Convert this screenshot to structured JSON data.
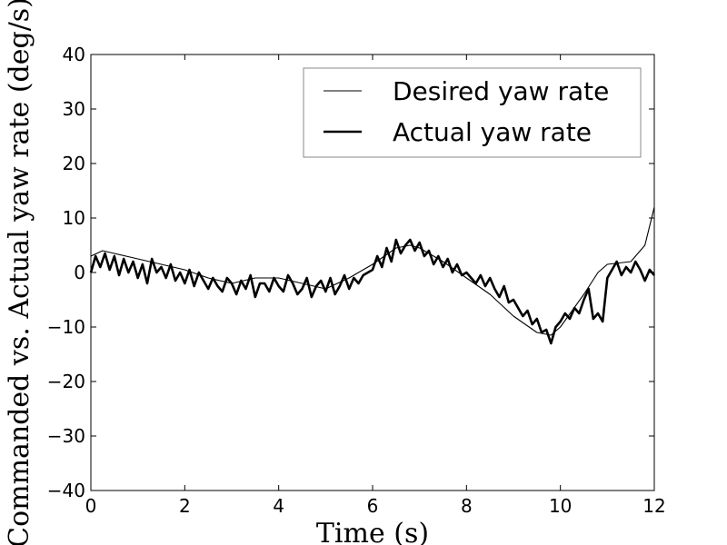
{
  "chart_data": {
    "type": "line",
    "title": "",
    "xlabel": "Time (s)",
    "ylabel": "Commanded vs. Actual yaw rate (deg/s)",
    "xlim": [
      0,
      12
    ],
    "ylim": [
      -40,
      40
    ],
    "xticks": [
      0,
      2,
      4,
      6,
      8,
      10,
      12
    ],
    "yticks": [
      -40,
      -30,
      -20,
      -10,
      0,
      10,
      20,
      30,
      40
    ],
    "xtick_labels": [
      "0",
      "2",
      "4",
      "6",
      "8",
      "10",
      "12"
    ],
    "ytick_labels": [
      "−40",
      "−30",
      "−20",
      "−10",
      "0",
      "10",
      "20",
      "30",
      "40"
    ],
    "grid": false,
    "legend_position": "top-right",
    "line_color": "#000000",
    "series": [
      {
        "name": "Desired yaw rate",
        "style": "thin",
        "x": [
          0,
          0.25,
          0.5,
          1.0,
          1.5,
          2.0,
          2.5,
          3.0,
          3.5,
          4.0,
          4.5,
          5.0,
          5.5,
          6.0,
          6.5,
          6.8,
          7.0,
          7.5,
          8.0,
          8.5,
          9.0,
          9.5,
          9.8,
          10.0,
          10.5,
          10.8,
          11.0,
          11.5,
          11.8,
          12.0
        ],
        "y": [
          3.0,
          4.0,
          3.5,
          2.5,
          1.5,
          0.5,
          -1.0,
          -2.0,
          -1.0,
          -1.0,
          -2.0,
          -3.0,
          -1.0,
          1.5,
          4.5,
          5.0,
          4.5,
          2.0,
          -1.0,
          -4.0,
          -8.0,
          -11.0,
          -11.5,
          -10.0,
          -4.0,
          0.0,
          1.5,
          2.0,
          5.0,
          12.0
        ]
      },
      {
        "name": "Actual yaw rate",
        "style": "thick",
        "x": [
          0,
          0.1,
          0.2,
          0.3,
          0.4,
          0.5,
          0.6,
          0.7,
          0.8,
          0.9,
          1.0,
          1.1,
          1.2,
          1.3,
          1.4,
          1.5,
          1.6,
          1.7,
          1.8,
          1.9,
          2.0,
          2.1,
          2.2,
          2.3,
          2.4,
          2.5,
          2.6,
          2.7,
          2.8,
          2.9,
          3.0,
          3.1,
          3.2,
          3.3,
          3.4,
          3.5,
          3.6,
          3.7,
          3.8,
          3.9,
          4.0,
          4.1,
          4.2,
          4.3,
          4.4,
          4.5,
          4.6,
          4.7,
          4.8,
          4.9,
          5.0,
          5.1,
          5.2,
          5.3,
          5.4,
          5.5,
          5.6,
          5.7,
          5.8,
          5.9,
          6.0,
          6.1,
          6.2,
          6.3,
          6.4,
          6.5,
          6.6,
          6.7,
          6.8,
          6.9,
          7.0,
          7.1,
          7.2,
          7.3,
          7.4,
          7.5,
          7.6,
          7.7,
          7.8,
          7.9,
          8.0,
          8.1,
          8.2,
          8.3,
          8.4,
          8.5,
          8.6,
          8.7,
          8.8,
          8.9,
          9.0,
          9.1,
          9.2,
          9.3,
          9.4,
          9.5,
          9.6,
          9.7,
          9.8,
          9.9,
          10.0,
          10.1,
          10.2,
          10.3,
          10.4,
          10.5,
          10.6,
          10.7,
          10.8,
          10.9,
          11.0,
          11.1,
          11.2,
          11.3,
          11.4,
          11.5,
          11.6,
          11.7,
          11.8,
          11.9,
          12.0
        ],
        "y": [
          0.0,
          3.0,
          1.0,
          3.5,
          0.5,
          3.0,
          -0.5,
          2.5,
          0.0,
          2.0,
          -1.0,
          1.5,
          -2.0,
          2.5,
          0.0,
          1.0,
          -1.0,
          1.5,
          -1.5,
          0.0,
          -2.0,
          0.5,
          -2.5,
          0.0,
          -1.5,
          -3.0,
          -1.0,
          -2.5,
          -3.5,
          -1.0,
          -2.0,
          -4.0,
          -1.5,
          -3.0,
          -0.5,
          -4.5,
          -2.0,
          -2.0,
          -3.5,
          -1.0,
          -2.5,
          -3.5,
          -0.5,
          -2.0,
          -4.0,
          -3.0,
          -1.0,
          -4.5,
          -2.5,
          -1.5,
          -3.5,
          -1.0,
          -4.0,
          -2.5,
          -0.5,
          -3.0,
          -1.0,
          -2.0,
          -0.5,
          0.0,
          0.5,
          3.0,
          1.0,
          4.5,
          2.0,
          6.0,
          3.5,
          5.0,
          6.0,
          4.0,
          5.5,
          3.0,
          4.0,
          1.5,
          3.0,
          1.0,
          2.5,
          0.0,
          1.5,
          -0.5,
          0.0,
          -1.0,
          -2.0,
          -0.5,
          -2.5,
          -1.0,
          -3.0,
          -4.5,
          -2.5,
          -5.5,
          -5.0,
          -6.5,
          -8.0,
          -7.0,
          -9.5,
          -8.5,
          -11.0,
          -10.5,
          -13.0,
          -10.0,
          -9.0,
          -7.5,
          -8.5,
          -6.5,
          -7.5,
          -5.0,
          -3.0,
          -8.5,
          -7.5,
          -9.0,
          -1.0,
          0.5,
          2.0,
          -0.5,
          1.0,
          0.0,
          2.0,
          0.5,
          -1.5,
          0.5,
          -0.5
        ]
      }
    ]
  }
}
